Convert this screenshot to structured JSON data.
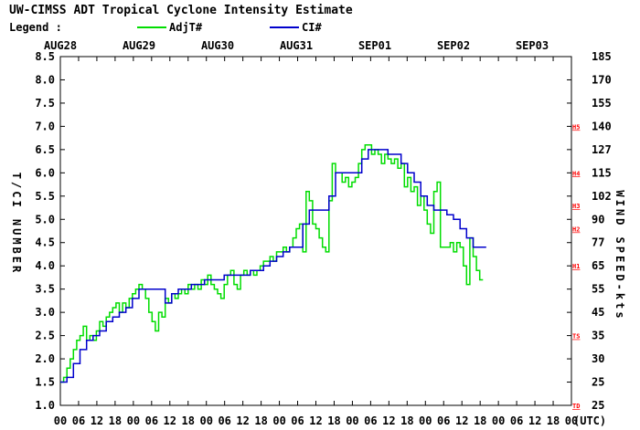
{
  "title": "UW-CIMSS ADT Tropical Cyclone Intensity Estimate",
  "legend_label": "Legend :",
  "colors": {
    "adjt": "#00dd00",
    "ci": "#0000cc",
    "category": "#ff0000",
    "axis": "#000000"
  },
  "chart_data": {
    "type": "line",
    "title": "UW-CIMSS ADT Tropical Cyclone Intensity Estimate",
    "ylabel": "T/CI NUMBER",
    "y2label": "WIND SPEED-kts",
    "xlabel_unit": "(UTC)",
    "ylim": [
      1.0,
      8.5
    ],
    "xlim": [
      0,
      156
    ],
    "x_units": "hours since AUG28 00 UTC",
    "grid": false,
    "legend_position": "top-left",
    "dates": [
      {
        "label": "AUG28",
        "x": 0
      },
      {
        "label": "AUG29",
        "x": 24
      },
      {
        "label": "AUG30",
        "x": 48
      },
      {
        "label": "AUG31",
        "x": 72
      },
      {
        "label": "SEP01",
        "x": 96
      },
      {
        "label": "SEP02",
        "x": 120
      },
      {
        "label": "SEP03",
        "x": 144
      }
    ],
    "hour_ticks": [
      "00",
      "06",
      "12",
      "18",
      "00",
      "06",
      "12",
      "18",
      "00",
      "06",
      "12",
      "18",
      "00",
      "06",
      "12",
      "18",
      "00",
      "06",
      "12",
      "18",
      "00",
      "06",
      "12",
      "18",
      "00",
      "06",
      "12",
      "18",
      "00"
    ],
    "y_ticks": [
      "1.0",
      "1.5",
      "2.0",
      "2.5",
      "3.0",
      "3.5",
      "4.0",
      "4.5",
      "5.0",
      "5.5",
      "6.0",
      "6.5",
      "7.0",
      "7.5",
      "8.0",
      "8.5"
    ],
    "wind_ticks": [
      {
        "t": 1.0,
        "label": "25"
      },
      {
        "t": 1.5,
        "label": "25"
      },
      {
        "t": 2.0,
        "label": "30"
      },
      {
        "t": 2.5,
        "label": "35"
      },
      {
        "t": 3.0,
        "label": "45"
      },
      {
        "t": 3.5,
        "label": "55"
      },
      {
        "t": 4.0,
        "label": "65"
      },
      {
        "t": 4.5,
        "label": "77"
      },
      {
        "t": 5.0,
        "label": "90"
      },
      {
        "t": 5.5,
        "label": "102"
      },
      {
        "t": 6.0,
        "label": "115"
      },
      {
        "t": 6.5,
        "label": "127"
      },
      {
        "t": 7.0,
        "label": "140"
      },
      {
        "t": 7.5,
        "label": "155"
      },
      {
        "t": 8.0,
        "label": "170"
      },
      {
        "t": 8.5,
        "label": "185"
      }
    ],
    "categories": [
      {
        "label": "TD",
        "t": 1.0
      },
      {
        "label": "TS",
        "t": 2.5
      },
      {
        "label": "H1",
        "t": 4.0
      },
      {
        "label": "H2",
        "t": 4.8
      },
      {
        "label": "H3",
        "t": 5.3
      },
      {
        "label": "H4",
        "t": 6.0
      },
      {
        "label": "H5",
        "t": 7.0
      }
    ],
    "series": [
      {
        "name": "AdjT#",
        "color": "#00dd00",
        "points": [
          [
            0,
            1.5
          ],
          [
            1,
            1.6
          ],
          [
            2,
            1.8
          ],
          [
            3,
            2.0
          ],
          [
            4,
            2.2
          ],
          [
            5,
            2.4
          ],
          [
            6,
            2.5
          ],
          [
            7,
            2.7
          ],
          [
            8,
            2.4
          ],
          [
            9,
            2.5
          ],
          [
            10,
            2.4
          ],
          [
            11,
            2.6
          ],
          [
            12,
            2.8
          ],
          [
            13,
            2.7
          ],
          [
            14,
            2.9
          ],
          [
            15,
            3.0
          ],
          [
            16,
            3.1
          ],
          [
            17,
            3.2
          ],
          [
            18,
            3.0
          ],
          [
            19,
            3.2
          ],
          [
            20,
            3.1
          ],
          [
            21,
            3.3
          ],
          [
            22,
            3.4
          ],
          [
            23,
            3.5
          ],
          [
            24,
            3.6
          ],
          [
            25,
            3.5
          ],
          [
            26,
            3.3
          ],
          [
            27,
            3.0
          ],
          [
            28,
            2.8
          ],
          [
            29,
            2.6
          ],
          [
            30,
            3.0
          ],
          [
            31,
            2.9
          ],
          [
            32,
            3.3
          ],
          [
            33,
            3.2
          ],
          [
            34,
            3.4
          ],
          [
            35,
            3.3
          ],
          [
            36,
            3.4
          ],
          [
            37,
            3.5
          ],
          [
            38,
            3.4
          ],
          [
            39,
            3.6
          ],
          [
            40,
            3.5
          ],
          [
            41,
            3.6
          ],
          [
            42,
            3.5
          ],
          [
            43,
            3.7
          ],
          [
            44,
            3.6
          ],
          [
            45,
            3.8
          ],
          [
            46,
            3.6
          ],
          [
            47,
            3.5
          ],
          [
            48,
            3.4
          ],
          [
            49,
            3.3
          ],
          [
            50,
            3.6
          ],
          [
            51,
            3.8
          ],
          [
            52,
            3.9
          ],
          [
            53,
            3.6
          ],
          [
            54,
            3.5
          ],
          [
            55,
            3.8
          ],
          [
            56,
            3.9
          ],
          [
            57,
            3.8
          ],
          [
            58,
            3.9
          ],
          [
            59,
            3.8
          ],
          [
            60,
            3.9
          ],
          [
            61,
            4.0
          ],
          [
            62,
            4.1
          ],
          [
            63,
            4.1
          ],
          [
            64,
            4.2
          ],
          [
            65,
            4.1
          ],
          [
            66,
            4.3
          ],
          [
            67,
            4.3
          ],
          [
            68,
            4.4
          ],
          [
            69,
            4.3
          ],
          [
            70,
            4.4
          ],
          [
            71,
            4.6
          ],
          [
            72,
            4.8
          ],
          [
            73,
            4.9
          ],
          [
            74,
            4.3
          ],
          [
            75,
            5.6
          ],
          [
            76,
            5.4
          ],
          [
            77,
            4.9
          ],
          [
            78,
            4.8
          ],
          [
            79,
            4.6
          ],
          [
            80,
            4.4
          ],
          [
            81,
            4.3
          ],
          [
            82,
            5.4
          ],
          [
            83,
            6.2
          ],
          [
            84,
            6.0
          ],
          [
            85,
            6.0
          ],
          [
            86,
            5.8
          ],
          [
            87,
            5.9
          ],
          [
            88,
            5.7
          ],
          [
            89,
            5.8
          ],
          [
            90,
            5.9
          ],
          [
            91,
            6.2
          ],
          [
            92,
            6.5
          ],
          [
            93,
            6.6
          ],
          [
            94,
            6.6
          ],
          [
            95,
            6.4
          ],
          [
            96,
            6.5
          ],
          [
            97,
            6.4
          ],
          [
            98,
            6.2
          ],
          [
            99,
            6.4
          ],
          [
            100,
            6.3
          ],
          [
            101,
            6.2
          ],
          [
            102,
            6.3
          ],
          [
            103,
            6.1
          ],
          [
            104,
            6.2
          ],
          [
            105,
            5.7
          ],
          [
            106,
            5.9
          ],
          [
            107,
            5.6
          ],
          [
            108,
            5.7
          ],
          [
            109,
            5.3
          ],
          [
            110,
            5.5
          ],
          [
            111,
            5.2
          ],
          [
            112,
            4.9
          ],
          [
            113,
            4.7
          ],
          [
            114,
            5.6
          ],
          [
            115,
            5.8
          ],
          [
            116,
            4.4
          ],
          [
            117,
            4.4
          ],
          [
            118,
            4.4
          ],
          [
            119,
            4.5
          ],
          [
            120,
            4.3
          ],
          [
            121,
            4.5
          ],
          [
            122,
            4.4
          ],
          [
            123,
            4.0
          ],
          [
            124,
            3.6
          ],
          [
            125,
            4.6
          ],
          [
            126,
            4.2
          ],
          [
            127,
            3.9
          ],
          [
            128,
            3.7
          ],
          [
            129,
            3.7
          ]
        ]
      },
      {
        "name": "CI#",
        "color": "#0000cc",
        "points": [
          [
            0,
            1.5
          ],
          [
            2,
            1.6
          ],
          [
            4,
            1.9
          ],
          [
            6,
            2.2
          ],
          [
            8,
            2.4
          ],
          [
            10,
            2.5
          ],
          [
            12,
            2.6
          ],
          [
            14,
            2.8
          ],
          [
            16,
            2.9
          ],
          [
            18,
            3.0
          ],
          [
            20,
            3.1
          ],
          [
            22,
            3.3
          ],
          [
            24,
            3.5
          ],
          [
            26,
            3.5
          ],
          [
            28,
            3.5
          ],
          [
            30,
            3.5
          ],
          [
            32,
            3.2
          ],
          [
            34,
            3.4
          ],
          [
            36,
            3.5
          ],
          [
            38,
            3.5
          ],
          [
            40,
            3.6
          ],
          [
            42,
            3.6
          ],
          [
            44,
            3.7
          ],
          [
            46,
            3.7
          ],
          [
            48,
            3.7
          ],
          [
            50,
            3.8
          ],
          [
            52,
            3.8
          ],
          [
            54,
            3.8
          ],
          [
            56,
            3.8
          ],
          [
            58,
            3.9
          ],
          [
            60,
            3.9
          ],
          [
            62,
            4.0
          ],
          [
            64,
            4.1
          ],
          [
            66,
            4.2
          ],
          [
            68,
            4.3
          ],
          [
            70,
            4.4
          ],
          [
            72,
            4.4
          ],
          [
            74,
            4.9
          ],
          [
            76,
            5.2
          ],
          [
            78,
            5.2
          ],
          [
            80,
            5.2
          ],
          [
            82,
            5.5
          ],
          [
            84,
            6.0
          ],
          [
            86,
            6.0
          ],
          [
            88,
            6.0
          ],
          [
            90,
            6.0
          ],
          [
            92,
            6.3
          ],
          [
            94,
            6.5
          ],
          [
            96,
            6.5
          ],
          [
            98,
            6.5
          ],
          [
            100,
            6.4
          ],
          [
            102,
            6.4
          ],
          [
            104,
            6.2
          ],
          [
            106,
            6.0
          ],
          [
            108,
            5.8
          ],
          [
            110,
            5.5
          ],
          [
            112,
            5.3
          ],
          [
            114,
            5.2
          ],
          [
            116,
            5.2
          ],
          [
            118,
            5.1
          ],
          [
            120,
            5.0
          ],
          [
            122,
            4.8
          ],
          [
            124,
            4.6
          ],
          [
            126,
            4.4
          ],
          [
            128,
            4.4
          ],
          [
            130,
            4.4
          ]
        ]
      }
    ]
  }
}
